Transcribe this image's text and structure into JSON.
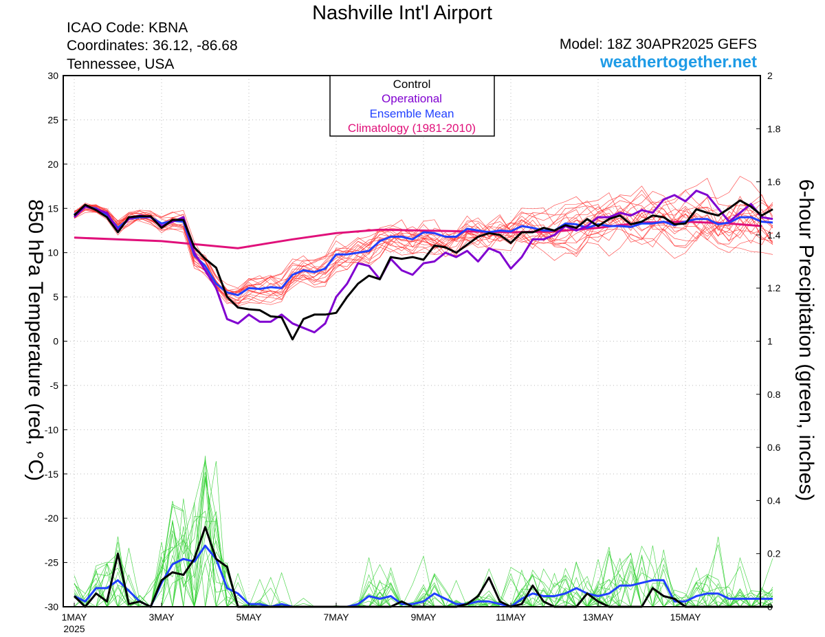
{
  "header": {
    "title": "Nashville Int'l Airport",
    "icao": "ICAO Code: KBNA",
    "coords": "Coordinates: 36.12, -86.68",
    "location": "Tennessee, USA",
    "model": "Model: 18Z 30APR2025 GEFS",
    "site": "weathertogether.net"
  },
  "colors": {
    "control": "#000000",
    "operational": "#8000d0",
    "ensemble_mean": "#2040ff",
    "climatology": "#e0107a",
    "member_temp": "#ff3030",
    "member_precip": "#30d030",
    "site": "#1e9be6",
    "grid": "#bbbbbb"
  },
  "chart_data": {
    "type": "line",
    "title": "Nashville Int'l Airport",
    "ylabel": "850 hPa Temperature (red, °C)",
    "y2label": "6-hour Precipitation (green, inches)",
    "ylim": [
      -30,
      30
    ],
    "y2lim": [
      0,
      2
    ],
    "yticks": [
      "30",
      "25",
      "20",
      "15",
      "10",
      "5",
      "0",
      "-5",
      "-10",
      "-15",
      "-20",
      "-25",
      "-30"
    ],
    "y2ticks": [
      "2",
      "1.8",
      "1.6",
      "1.4",
      "1.2",
      "1",
      "0.8",
      "0.6",
      "0.4",
      "0.2",
      "0"
    ],
    "xlim": [
      0,
      15.75
    ],
    "xticks": [
      {
        "day": 0,
        "label": "1MAY",
        "sub": "2025"
      },
      {
        "day": 2,
        "label": "3MAY",
        "sub": ""
      },
      {
        "day": 4,
        "label": "5MAY",
        "sub": ""
      },
      {
        "day": 6,
        "label": "7MAY",
        "sub": ""
      },
      {
        "day": 8,
        "label": "9MAY",
        "sub": ""
      },
      {
        "day": 10,
        "label": "11MAY",
        "sub": ""
      },
      {
        "day": 12,
        "label": "13MAY",
        "sub": ""
      },
      {
        "day": 14,
        "label": "15MAY",
        "sub": ""
      }
    ],
    "legend": [
      "Control",
      "Operational",
      "Ensemble Mean",
      "Climatology (1981-2010)"
    ],
    "legend_position": "top-center",
    "x_step_days": 0.25,
    "temp_series": {
      "control": [
        14.2,
        15.4,
        14.8,
        14,
        12.3,
        14,
        14.1,
        14.1,
        12.8,
        13.7,
        13.7,
        10.6,
        9.3,
        8.3,
        5,
        3.8,
        3.6,
        3.5,
        2.8,
        2.7,
        0.2,
        2.5,
        3,
        3,
        3.2,
        5,
        6.5,
        7.4,
        7,
        9.5,
        9.3,
        9.5,
        9.2,
        10.8,
        10.6,
        10,
        10.9,
        11.8,
        12.2,
        12,
        11.1,
        12.3,
        12.3,
        12.8,
        12.5,
        13.1,
        12.8,
        13.8,
        13,
        13.8,
        14.2,
        13.2,
        13.5,
        14.2,
        14,
        13.2,
        13.3,
        14.9,
        14.5,
        14.2,
        15,
        15.9,
        15.2,
        14.2,
        14.9
      ],
      "operational": [
        14,
        15.2,
        14.9,
        14.5,
        12.5,
        13.8,
        14.2,
        14,
        13,
        13.5,
        14,
        10,
        8,
        6,
        2.5,
        2,
        3,
        2.2,
        2.2,
        3,
        2,
        1.5,
        1,
        2,
        5,
        6.5,
        8.8,
        8.5,
        7,
        9.3,
        8,
        7.5,
        8.8,
        9,
        10,
        9.5,
        10.2,
        9,
        10.5,
        10,
        8.2,
        9.5,
        11.5,
        11.5,
        12,
        13,
        12.5,
        13,
        14,
        14,
        14.5,
        14.2,
        14.8,
        14.5,
        16,
        16.5,
        15.8,
        17,
        16.5,
        15,
        13.5,
        14.5,
        15.5,
        14,
        13.8
      ],
      "ensemble_mean": [
        14.3,
        15.2,
        15,
        14.3,
        12.8,
        13.8,
        14,
        14,
        13.3,
        13.6,
        13.5,
        9.7,
        8.5,
        6.5,
        5.5,
        5.2,
        6,
        5.9,
        6.1,
        6,
        7.5,
        8,
        7.8,
        8.2,
        9.8,
        9.8,
        10,
        10.2,
        11.3,
        11.8,
        11.8,
        11.5,
        12.3,
        12.2,
        11.8,
        11.8,
        12.7,
        12.5,
        12.3,
        12.5,
        12.4,
        13,
        12.8,
        12.5,
        12.5,
        13.3,
        13.2,
        12.8,
        13.2,
        13,
        13,
        12.9,
        13.3,
        13.3,
        13.5,
        13.1,
        13.5,
        13.8,
        13.8,
        13.2,
        13.4,
        14,
        14,
        13.5,
        13.4
      ],
      "climatology": [
        [
          0,
          11.7
        ],
        [
          2,
          11.3
        ],
        [
          3.75,
          10.5
        ],
        [
          5,
          11.5
        ],
        [
          6,
          12.2
        ],
        [
          7,
          12.6
        ],
        [
          8,
          12.5
        ],
        [
          9,
          12.4
        ],
        [
          10,
          12.3
        ],
        [
          11,
          12.4
        ],
        [
          12,
          12.8
        ],
        [
          13,
          13.4
        ],
        [
          14,
          13.5
        ],
        [
          15,
          13.3
        ],
        [
          15.75,
          13
        ]
      ]
    },
    "precip_series": {
      "control": [
        0.04,
        0,
        0.05,
        0.02,
        0.2,
        0.01,
        0.02,
        0,
        0.1,
        0.13,
        0.12,
        0.18,
        0.3,
        0.18,
        0.15,
        0,
        0,
        0,
        0,
        0,
        0,
        0,
        0,
        0,
        0,
        0,
        0,
        0,
        0,
        0,
        0.02,
        0,
        0,
        0,
        0,
        0,
        0.01,
        0.04,
        0.11,
        0.02,
        0,
        0.01,
        0.08,
        0.02,
        0,
        0,
        0,
        0.05,
        0.02,
        0,
        0,
        0,
        0,
        0.07,
        0.04,
        0.03,
        0,
        0,
        0,
        0,
        0,
        0,
        0,
        0,
        0
      ],
      "ensemble_mean": [
        0.04,
        0.02,
        0.07,
        0.07,
        0.1,
        0.06,
        0.02,
        0,
        0.09,
        0.16,
        0.18,
        0.17,
        0.23,
        0.18,
        0.07,
        0.05,
        0.01,
        0.01,
        0,
        0.01,
        0,
        0,
        0,
        0,
        0,
        0,
        0.01,
        0.04,
        0.03,
        0.04,
        0.01,
        0.01,
        0.02,
        0.05,
        0.03,
        0.01,
        0.01,
        0.02,
        0.02,
        0.01,
        0,
        0.03,
        0.05,
        0.04,
        0.04,
        0.05,
        0.07,
        0.05,
        0.04,
        0.05,
        0.08,
        0.08,
        0.09,
        0.1,
        0.1,
        0.02,
        0.02,
        0.04,
        0.05,
        0.05,
        0.03,
        0.03,
        0.03,
        0.03,
        0.03
      ]
    },
    "members_seed": 20250430
  }
}
